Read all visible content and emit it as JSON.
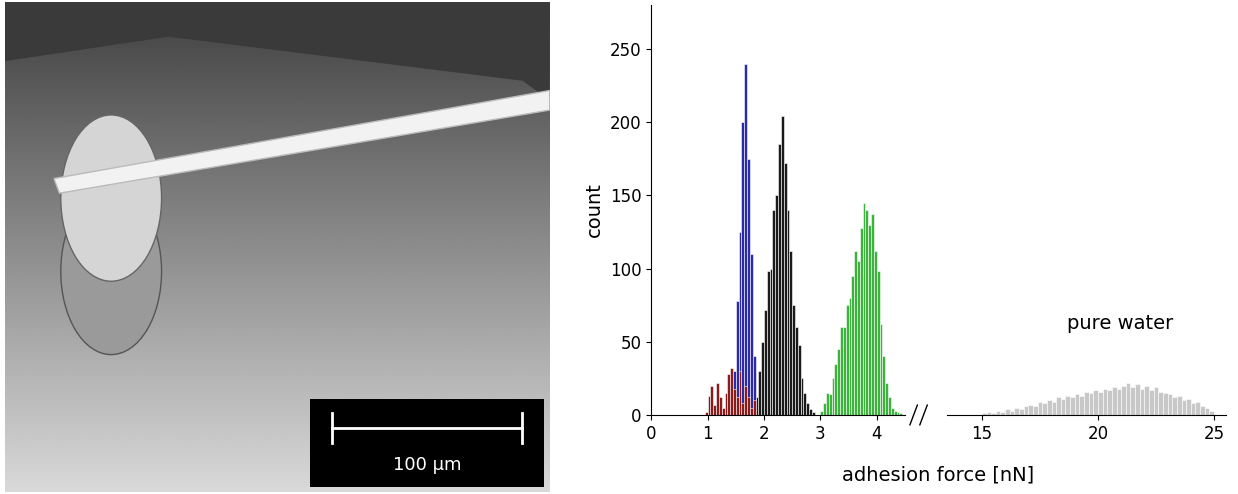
{
  "photo": {
    "scale_bar_label": "100 µm"
  },
  "chart_data": [
    {
      "type": "histogram",
      "y_label": "count",
      "xlim": [
        0,
        4.5
      ],
      "xticks": [
        0,
        1,
        2,
        3,
        4
      ],
      "ylim": [
        0,
        280
      ],
      "yticks": [
        0,
        50,
        100,
        150,
        200,
        250
      ],
      "series": [
        {
          "color": "#2b2ba8",
          "bins": [
            1.35,
            1.4,
            1.45,
            1.5,
            1.55,
            1.6,
            1.65,
            1.7,
            1.75,
            1.8,
            1.85,
            1.9
          ],
          "values": [
            5,
            12,
            30,
            78,
            125,
            200,
            240,
            175,
            110,
            40,
            10
          ]
        },
        {
          "color": "#1a1a1a",
          "bins": [
            1.85,
            1.9,
            1.95,
            2.0,
            2.05,
            2.1,
            2.15,
            2.2,
            2.25,
            2.3,
            2.35,
            2.4,
            2.45,
            2.5,
            2.55,
            2.6,
            2.65,
            2.7,
            2.75,
            2.8,
            2.85,
            2.9
          ],
          "values": [
            12,
            30,
            50,
            72,
            98,
            100,
            140,
            150,
            185,
            204,
            172,
            140,
            112,
            75,
            60,
            48,
            25,
            15,
            8,
            4,
            2
          ]
        },
        {
          "color": "#3cb33c",
          "bins": [
            3.0,
            3.05,
            3.1,
            3.15,
            3.2,
            3.25,
            3.3,
            3.35,
            3.4,
            3.45,
            3.5,
            3.55,
            3.6,
            3.65,
            3.7,
            3.75,
            3.8,
            3.85,
            3.9,
            3.95,
            4.0,
            4.05,
            4.1,
            4.15,
            4.2,
            4.25,
            4.3,
            4.35,
            4.4,
            4.45
          ],
          "values": [
            3,
            8,
            15,
            14,
            25,
            35,
            45,
            60,
            60,
            75,
            80,
            95,
            112,
            105,
            128,
            145,
            140,
            130,
            137,
            112,
            98,
            62,
            40,
            22,
            12,
            5,
            3,
            2,
            1
          ]
        },
        {
          "color": "#8b1a1a",
          "bins": [
            0.95,
            1.0,
            1.05,
            1.1,
            1.15,
            1.2,
            1.25,
            1.3,
            1.35,
            1.4,
            1.45,
            1.5,
            1.55,
            1.6,
            1.65,
            1.7,
            1.75,
            1.8,
            1.85
          ],
          "values": [
            2,
            13,
            20,
            7,
            22,
            12,
            5,
            15,
            28,
            32,
            18,
            12,
            30,
            8,
            20,
            12,
            5,
            10
          ]
        }
      ]
    },
    {
      "type": "histogram",
      "x_label": "adhesion force [nN]",
      "annotation": "pure water",
      "xlim": [
        13.5,
        25.5
      ],
      "xticks": [
        15,
        20,
        25
      ],
      "ylim": [
        0,
        280
      ],
      "yticks": [
        0,
        50,
        100,
        150,
        200,
        250
      ],
      "tick_labels": "x",
      "series": [
        {
          "color": "#c8c8c8",
          "bins": [
            15.0,
            15.2,
            15.4,
            15.6,
            15.8,
            16.0,
            16.2,
            16.4,
            16.6,
            16.8,
            17.0,
            17.2,
            17.4,
            17.6,
            17.8,
            18.0,
            18.2,
            18.4,
            18.6,
            18.8,
            19.0,
            19.2,
            19.4,
            19.6,
            19.8,
            20.0,
            20.2,
            20.4,
            20.6,
            20.8,
            21.0,
            21.2,
            21.4,
            21.6,
            21.8,
            22.0,
            22.2,
            22.4,
            22.6,
            22.8,
            23.0,
            23.2,
            23.4,
            23.6,
            23.8,
            24.0,
            24.2,
            24.4,
            24.6,
            24.8,
            25.0
          ],
          "values": [
            1,
            2,
            1,
            3,
            2,
            4,
            3,
            5,
            4,
            6,
            7,
            6,
            9,
            8,
            10,
            9,
            12,
            11,
            13,
            12,
            14,
            13,
            16,
            15,
            17,
            16,
            18,
            17,
            19,
            18,
            20,
            22,
            19,
            21,
            18,
            20,
            17,
            19,
            16,
            15,
            14,
            12,
            13,
            10,
            11,
            8,
            9,
            6,
            5,
            3
          ]
        }
      ]
    }
  ]
}
